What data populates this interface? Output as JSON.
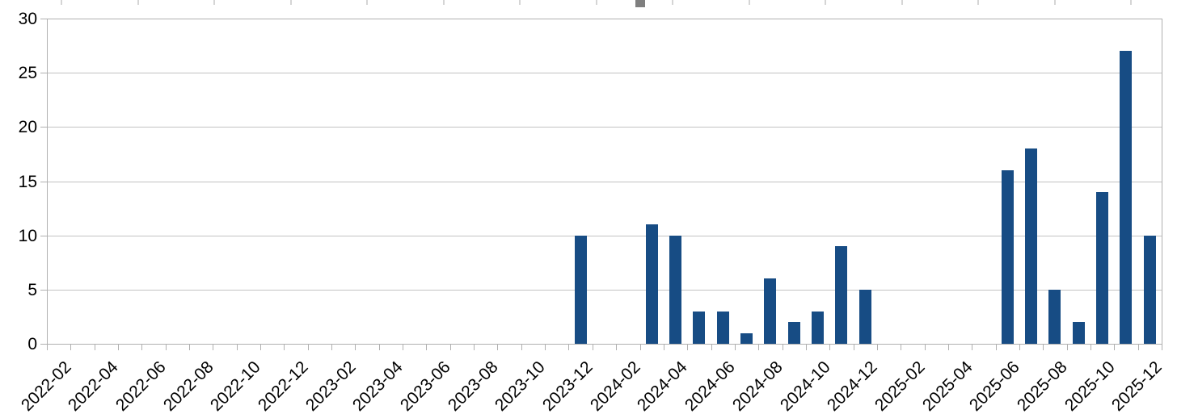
{
  "top_strip": {
    "tick_color": "#d5d5d5",
    "thumb_color": "#7f7f7f"
  },
  "chart_data": {
    "type": "bar",
    "title": "",
    "xlabel": "",
    "ylabel": "",
    "legend": "none",
    "grid": "horizontal",
    "ylim": [
      0,
      30
    ],
    "y_ticks": [
      0,
      5,
      10,
      15,
      20,
      25,
      30
    ],
    "x_label_every": 2,
    "bar_color": "#174c84",
    "gridline_color": "#c2c2c2",
    "frame_color": "#b0b0b0",
    "axis_text_color": "#000000",
    "categories": [
      "2022-02",
      "2022-03",
      "2022-04",
      "2022-05",
      "2022-06",
      "2022-07",
      "2022-08",
      "2022-09",
      "2022-10",
      "2022-11",
      "2022-12",
      "2023-01",
      "2023-02",
      "2023-03",
      "2023-04",
      "2023-05",
      "2023-06",
      "2023-07",
      "2023-08",
      "2023-09",
      "2023-10",
      "2023-11",
      "2023-12",
      "2024-01",
      "2024-02",
      "2024-03",
      "2024-04",
      "2024-05",
      "2024-06",
      "2024-07",
      "2024-08",
      "2024-09",
      "2024-10",
      "2024-11",
      "2024-12",
      "2025-01",
      "2025-02",
      "2025-03",
      "2025-04",
      "2025-05",
      "2025-06",
      "2025-07",
      "2025-08",
      "2025-09",
      "2025-10",
      "2025-11",
      "2025-12"
    ],
    "values": [
      0,
      0,
      0,
      0,
      0,
      0,
      0,
      0,
      0,
      0,
      0,
      0,
      0,
      0,
      0,
      0,
      0,
      0,
      0,
      0,
      0,
      0,
      10,
      0,
      0,
      11,
      10,
      3,
      3,
      1,
      6,
      2,
      3,
      9,
      5,
      0,
      0,
      0,
      0,
      0,
      16,
      18,
      5,
      2,
      14,
      27,
      10
    ],
    "x_tick_labels": [
      "2022-02",
      "2022-04",
      "2022-06",
      "2022-08",
      "2022-10",
      "2022-12",
      "2023-02",
      "2023-04",
      "2023-06",
      "2023-08",
      "2023-10",
      "2023-12",
      "2024-02",
      "2024-04",
      "2024-06",
      "2024-08",
      "2024-10",
      "2024-12",
      "2025-02",
      "2025-04",
      "2025-06",
      "2025-08",
      "2025-10",
      "2025-12"
    ]
  }
}
